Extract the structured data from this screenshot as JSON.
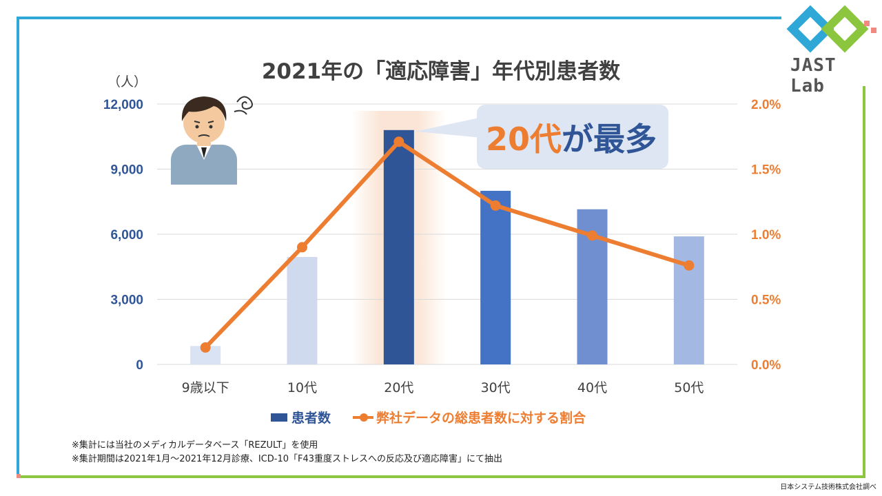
{
  "title": "2021年の「適応障害」年代別患者数",
  "y_unit": "（人）",
  "logo": {
    "text": "JAST Lab"
  },
  "callout": {
    "part1": "20代",
    "part2": "が最多"
  },
  "legend": {
    "bars": "患者数",
    "line": "弊社データの総患者数に対する割合"
  },
  "notes": [
    "※集計には当社のメディカルデータベース「REZULT」を使用",
    "※集計期間は2021年1月～2021年12月診療、ICD-10「F43重度ストレスへの反応及び適応障害」にて抽出"
  ],
  "source": "日本システム技術株式会社調べ",
  "colors": {
    "left_axis": "#2f5597",
    "right_axis": "#ed7d31",
    "line": "#ed7d31",
    "highlight": "#fbe5d6",
    "bars": [
      "#dae3f3",
      "#cfdaee",
      "#2f5597",
      "#4472c4",
      "#6f8fd0",
      "#a3b8e2"
    ]
  },
  "chart_data": {
    "type": "bar+line",
    "categories": [
      "9歳以下",
      "10代",
      "20代",
      "30代",
      "40代",
      "50代"
    ],
    "series": [
      {
        "name": "患者数",
        "type": "bar",
        "axis": "left",
        "values": [
          850,
          4950,
          10800,
          8000,
          7150,
          5900
        ]
      },
      {
        "name": "弊社データの総患者数に対する割合",
        "type": "line",
        "axis": "right",
        "values": [
          0.13,
          0.9,
          1.71,
          1.22,
          0.99,
          0.76
        ]
      }
    ],
    "left_axis": {
      "ylim": [
        0,
        12000
      ],
      "ticks": [
        "0",
        "3,000",
        "6,000",
        "9,000",
        "12,000"
      ],
      "values": [
        0,
        3000,
        6000,
        9000,
        12000
      ]
    },
    "right_axis": {
      "ylim": [
        0,
        2.0
      ],
      "ticks": [
        "0.0%",
        "0.5%",
        "1.0%",
        "1.5%",
        "2.0%"
      ],
      "values": [
        0,
        0.5,
        1.0,
        1.5,
        2.0
      ]
    },
    "highlight_category": "20代",
    "grid": true,
    "legend_position": "bottom"
  }
}
